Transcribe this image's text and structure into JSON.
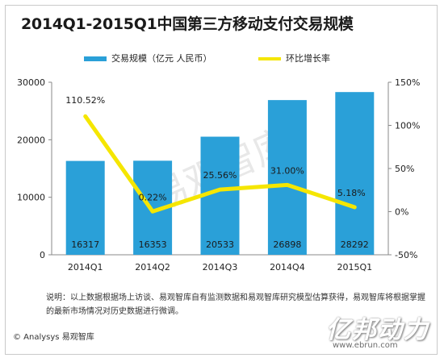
{
  "chart_data": {
    "type": "bar",
    "title": "2014Q1-2015Q1中国第三方移动支付交易规模",
    "categories": [
      "2014Q1",
      "2014Q2",
      "2014Q3",
      "2014Q4",
      "2015Q1"
    ],
    "series": [
      {
        "name": "交易规模（亿元 人民币）",
        "type": "bar",
        "axis": "left",
        "values": [
          16317,
          16353,
          20533,
          26898,
          28292
        ],
        "color": "#2aa0d8"
      },
      {
        "name": "环比增长率",
        "type": "line",
        "axis": "right",
        "values": [
          110.52,
          0.22,
          25.56,
          31.0,
          5.18
        ],
        "color": "#f5e600"
      }
    ],
    "bar_labels": [
      "16317",
      "16353",
      "20533",
      "26898",
      "28292"
    ],
    "line_labels": [
      "110.52%",
      "0.22%",
      "25.56%",
      "31.00%",
      "5.18%"
    ],
    "y_left": {
      "ylim": [
        0,
        30000
      ],
      "ticks": [
        "0",
        "10000",
        "20000",
        "30000"
      ]
    },
    "y_right": {
      "ylim": [
        -50,
        150
      ],
      "ticks": [
        "-50%",
        "0%",
        "50%",
        "100%",
        "150%"
      ]
    },
    "legend_position": "top",
    "grid": false
  },
  "note": "说明：以上数据根据场上访谈、易观智库自有监测数据和易观智库研究模型估算获得，易观智库将根据掌握的最新市场情况对历史数据进行微调。",
  "footer": "© Analysys 易观智库",
  "watermark": "易观智库",
  "brand_logo": "亿邦动力",
  "brand_site": "www.ebrun.com"
}
